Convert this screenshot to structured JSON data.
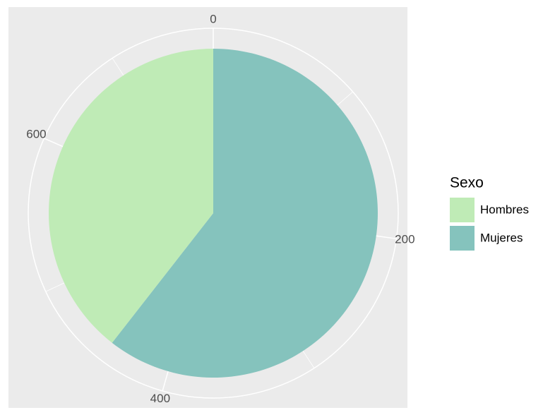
{
  "chart_data": {
    "type": "pie",
    "legend_title": "Sexo",
    "categories": [
      "Hombres",
      "Mujeres"
    ],
    "values": [
      290,
      445
    ],
    "colors": [
      "#BFEBB6",
      "#85C3BD"
    ],
    "ylim": [
      0,
      735
    ],
    "yticks": [
      0,
      200,
      400,
      600
    ],
    "grid": true,
    "legend": "right"
  }
}
